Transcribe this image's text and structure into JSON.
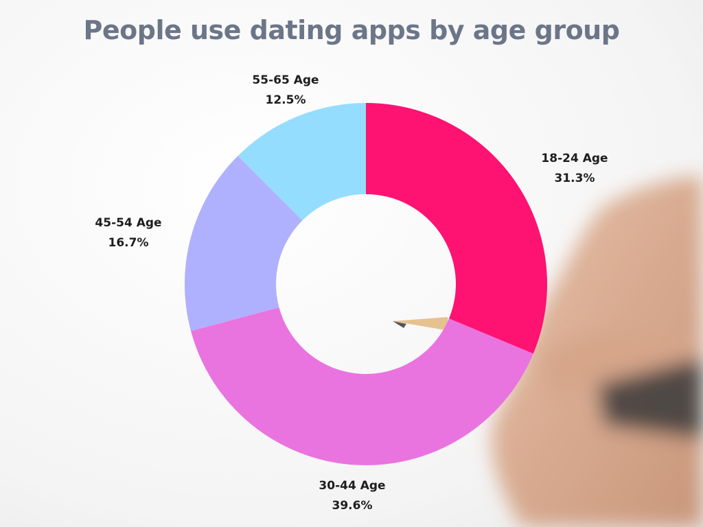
{
  "chart_data": {
    "type": "pie",
    "title": "People use dating apps by age group",
    "donut": true,
    "start": "top",
    "direction": "clockwise",
    "slices": [
      {
        "label": "18-24 Age",
        "value": 31.3,
        "display": "31.3%",
        "color": "#fe1272"
      },
      {
        "label": "30-44 Age",
        "value": 39.6,
        "display": "39.6%",
        "color": "#e974e0"
      },
      {
        "label": "45-54 Age",
        "value": 16.7,
        "display": "16.7%",
        "color": "#afb1fe"
      },
      {
        "label": "55-65 Age",
        "value": 12.5,
        "display": "12.5%",
        "color": "#95ddff"
      }
    ]
  }
}
